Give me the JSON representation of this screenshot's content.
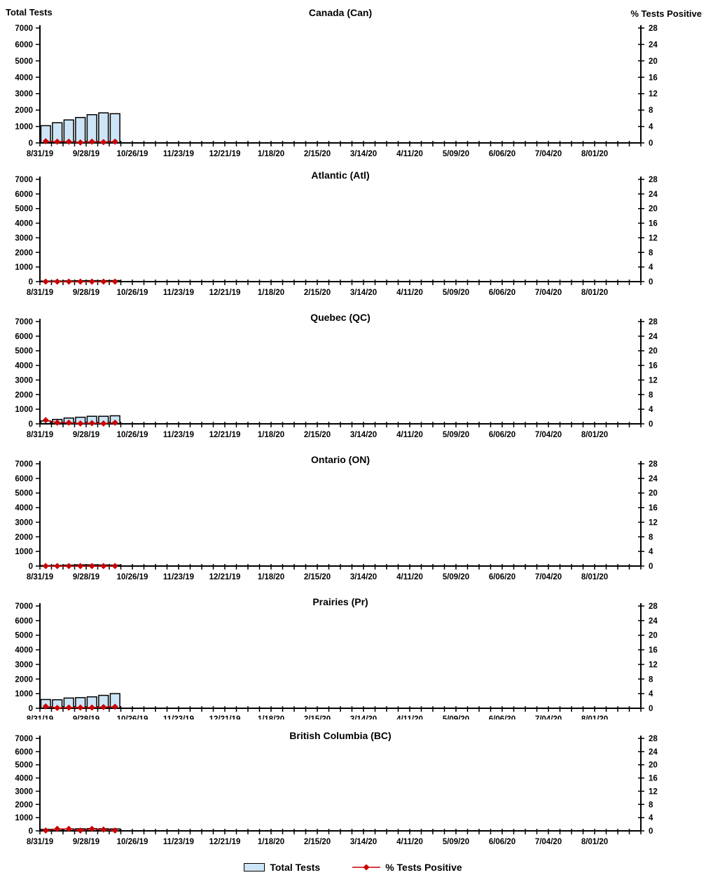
{
  "page": {
    "left_axis_title": "Total Tests",
    "right_axis_title": "% Tests Positive"
  },
  "legend": {
    "total_tests_label": "Total Tests",
    "pct_positive_label": "% Tests Positive"
  },
  "colors": {
    "bar_fill": "#cde5f6",
    "bar_border": "#000000",
    "line": "#cc0000",
    "marker": "#cc0000",
    "axis": "#000000",
    "text": "#000000"
  },
  "axes": {
    "left_label": "Total Tests",
    "right_label": "% Tests Positive",
    "left_ticks": [
      0,
      1000,
      2000,
      3000,
      4000,
      5000,
      6000,
      7000
    ],
    "right_ticks": [
      0,
      4,
      8,
      12,
      16,
      20,
      24,
      28
    ],
    "left_range": [
      0,
      7000
    ],
    "right_range": [
      0,
      28
    ],
    "x_tick_labels": [
      "8/31/19",
      "9/28/19",
      "10/26/19",
      "11/23/19",
      "12/21/19",
      "1/18/20",
      "2/15/20",
      "3/14/20",
      "4/11/20",
      "5/09/20",
      "6/06/20",
      "7/04/20",
      "8/01/20"
    ],
    "weeks_total": 53,
    "label_every_n_weeks": 4
  },
  "chart_data": [
    {
      "type": "bar",
      "title": "Canada (Can)",
      "region_code": "Can",
      "weeks": [
        "8/31/19",
        "9/07/19",
        "9/14/19",
        "9/21/19",
        "9/28/19",
        "10/05/19",
        "10/12/19"
      ],
      "series": [
        {
          "name": "Total Tests",
          "axis": "left",
          "values": [
            1050,
            1230,
            1400,
            1550,
            1720,
            1830,
            1780
          ]
        },
        {
          "name": "% Tests Positive",
          "axis": "right",
          "values": [
            0.4,
            0.3,
            0.3,
            0.1,
            0.3,
            0.2,
            0.3
          ]
        }
      ]
    },
    {
      "type": "bar",
      "title": "Atlantic (Atl)",
      "region_code": "Atl",
      "weeks": [
        "8/31/19",
        "9/07/19",
        "9/14/19",
        "9/21/19",
        "9/28/19",
        "10/05/19",
        "10/12/19"
      ],
      "series": [
        {
          "name": "Total Tests",
          "axis": "left",
          "values": [
            40,
            45,
            55,
            60,
            65,
            65,
            70
          ]
        },
        {
          "name": "% Tests Positive",
          "axis": "right",
          "values": [
            0,
            0,
            0,
            0,
            0,
            0,
            0
          ]
        }
      ]
    },
    {
      "type": "bar",
      "title": "Quebec (QC)",
      "region_code": "QC",
      "weeks": [
        "8/31/19",
        "9/07/19",
        "9/14/19",
        "9/21/19",
        "9/28/19",
        "10/05/19",
        "10/12/19"
      ],
      "series": [
        {
          "name": "Total Tests",
          "axis": "left",
          "values": [
            200,
            300,
            400,
            450,
            520,
            520,
            550
          ]
        },
        {
          "name": "% Tests Positive",
          "axis": "right",
          "values": [
            1.0,
            0.3,
            0.3,
            0.1,
            0.2,
            0.1,
            0.3
          ]
        }
      ]
    },
    {
      "type": "bar",
      "title": "Ontario (ON)",
      "region_code": "ON",
      "weeks": [
        "8/31/19",
        "9/07/19",
        "9/14/19",
        "9/21/19",
        "9/28/19",
        "10/05/19",
        "10/12/19"
      ],
      "series": [
        {
          "name": "Total Tests",
          "axis": "left",
          "values": [
            35,
            45,
            60,
            80,
            80,
            70,
            60
          ]
        },
        {
          "name": "% Tests Positive",
          "axis": "right",
          "values": [
            0,
            0,
            0,
            0,
            0,
            0,
            0
          ]
        }
      ]
    },
    {
      "type": "bar",
      "title": "Prairies (Pr)",
      "region_code": "Pr",
      "weeks": [
        "8/31/19",
        "9/07/19",
        "9/14/19",
        "9/21/19",
        "9/28/19",
        "10/05/19",
        "10/12/19"
      ],
      "series": [
        {
          "name": "Total Tests",
          "axis": "left",
          "values": [
            600,
            580,
            700,
            730,
            780,
            880,
            1000
          ]
        },
        {
          "name": "% Tests Positive",
          "axis": "right",
          "values": [
            0.5,
            0.1,
            0.2,
            0.2,
            0.2,
            0.3,
            0.4
          ]
        }
      ]
    },
    {
      "type": "bar",
      "title": "British Columbia (BC)",
      "region_code": "BC",
      "weeks": [
        "8/31/19",
        "9/07/19",
        "9/14/19",
        "9/21/19",
        "9/28/19",
        "10/05/19",
        "10/12/19"
      ],
      "series": [
        {
          "name": "Total Tests",
          "axis": "left",
          "values": [
            110,
            120,
            150,
            160,
            170,
            160,
            150
          ]
        },
        {
          "name": "% Tests Positive",
          "axis": "right",
          "values": [
            0.1,
            0.6,
            0.6,
            0.1,
            0.6,
            0.4,
            0.1
          ]
        }
      ]
    }
  ]
}
